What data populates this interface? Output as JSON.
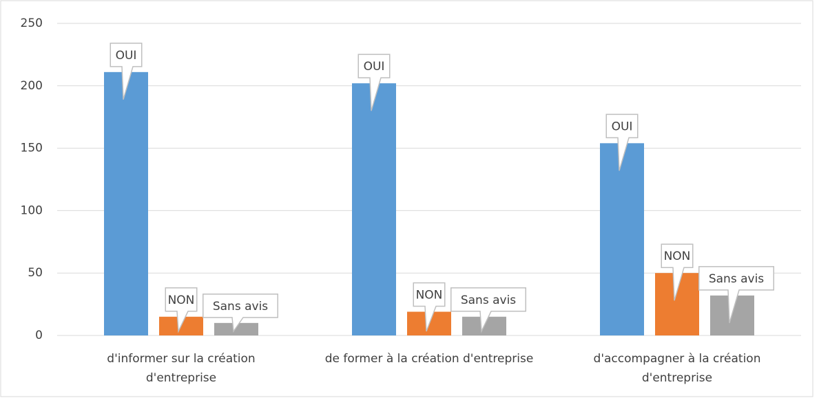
{
  "chart_data": {
    "type": "bar",
    "categories": [
      "d'informer sur la création d'entreprise",
      "de former à la création d'entreprise",
      "d'accompagner à la création d'entreprise"
    ],
    "series": [
      {
        "name": "OUI",
        "color": "#5b9bd5",
        "values": [
          211,
          202,
          154
        ]
      },
      {
        "name": "NON",
        "color": "#ed7d31",
        "values": [
          15,
          19,
          50
        ]
      },
      {
        "name": "Sans avis",
        "color": "#a5a5a5",
        "values": [
          10,
          15,
          32
        ]
      }
    ],
    "ylim": [
      0,
      250
    ],
    "yticks": [
      0,
      50,
      100,
      150,
      200,
      250
    ],
    "grid": true
  }
}
